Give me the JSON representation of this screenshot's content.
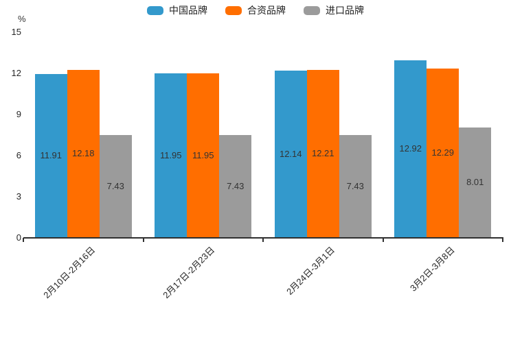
{
  "chart_data": {
    "type": "bar",
    "title": "",
    "unit_label": "%",
    "categories": [
      "2月10日-2月16日",
      "2月17日-2月23日",
      "2月24日-3月1日",
      "3月2日-3月8日"
    ],
    "series": [
      {
        "name": "中国品牌",
        "color": "#3399cc",
        "values": [
          11.91,
          11.95,
          12.14,
          12.92
        ]
      },
      {
        "name": "合资品牌",
        "color": "#ff6e00",
        "values": [
          12.18,
          11.95,
          12.21,
          12.29
        ]
      },
      {
        "name": "进口品牌",
        "color": "#9b9b9b",
        "values": [
          7.43,
          7.43,
          7.43,
          8.01
        ]
      }
    ],
    "ylim": [
      0,
      15
    ],
    "yticks": [
      0,
      3,
      6,
      9,
      12,
      15
    ],
    "grid": false,
    "legend_position": "top",
    "value_label_position": "inside-center",
    "colors": {
      "axis": "#2f2f2f",
      "text": "#333333",
      "background": "#ffffff"
    }
  }
}
